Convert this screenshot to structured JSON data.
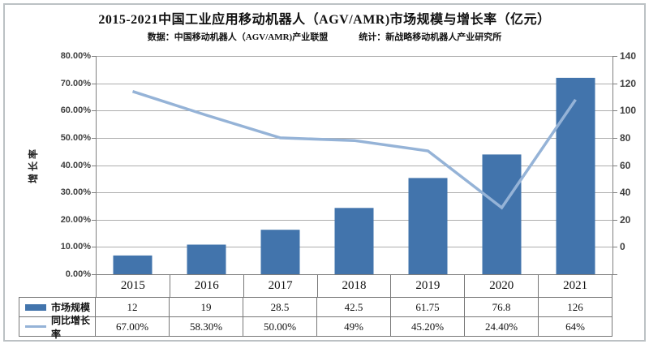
{
  "header": {
    "title": "2015-2021中国工业应用移动机器人（AGV/AMR)市场规模与增长率（亿元）",
    "subtitle_source": "数据：中国移动机器人（AGV/AMR)产业联盟",
    "subtitle_stat": "统计：新战略移动机器人产业研究所"
  },
  "chart_data": {
    "type": "bar",
    "subtype": "combo-bar-line",
    "categories": [
      "2015",
      "2016",
      "2017",
      "2018",
      "2019",
      "2020",
      "2021"
    ],
    "series": [
      {
        "name": "市场规模",
        "chart": "bar",
        "axis": "right",
        "values": [
          12,
          19,
          28.5,
          42.5,
          61.75,
          76.8,
          126
        ]
      },
      {
        "name": "同比增长率",
        "chart": "line",
        "axis": "left",
        "values_percent": [
          67.0,
          58.3,
          50.0,
          49.0,
          45.2,
          24.4,
          64.0
        ]
      }
    ],
    "title": "2015-2021中国工业应用移动机器人（AGV/AMR)市场规模与增长率（亿元）",
    "left_axis": {
      "title": "增长率",
      "min": 0,
      "max": 80,
      "step": 10,
      "ticks": [
        "80.00%",
        "70.00%",
        "60.00%",
        "50.00%",
        "40.00%",
        "30.00%",
        "20.00%",
        "10.00%",
        "0.00%"
      ]
    },
    "right_axis": {
      "min": 0,
      "max": 140,
      "step": 20,
      "ticks": [
        "140",
        "120",
        "100",
        "80",
        "60",
        "40",
        "20",
        "0"
      ]
    },
    "grid": "horizontal",
    "legend_position": "left-of-table"
  },
  "table": {
    "years": [
      "2015",
      "2016",
      "2017",
      "2018",
      "2019",
      "2020",
      "2021"
    ],
    "rows": [
      {
        "label": "市场规模",
        "swatch": "bar",
        "values": [
          "12",
          "19",
          "28.5",
          "42.5",
          "61.75",
          "76.8",
          "126"
        ]
      },
      {
        "label": "同比增长率",
        "swatch": "line",
        "values": [
          "67.00%",
          "58.30%",
          "50.00%",
          "49%",
          "45.20%",
          "24.40%",
          "64%"
        ]
      }
    ]
  },
  "colors": {
    "bar": "#4274AC",
    "line": "#95B3D7",
    "grid": "#ADADAD",
    "axis": "#7F7F7F",
    "table_border": "#777777",
    "tick_text": "#3F3F3F",
    "frame": "#BCC1C4"
  }
}
